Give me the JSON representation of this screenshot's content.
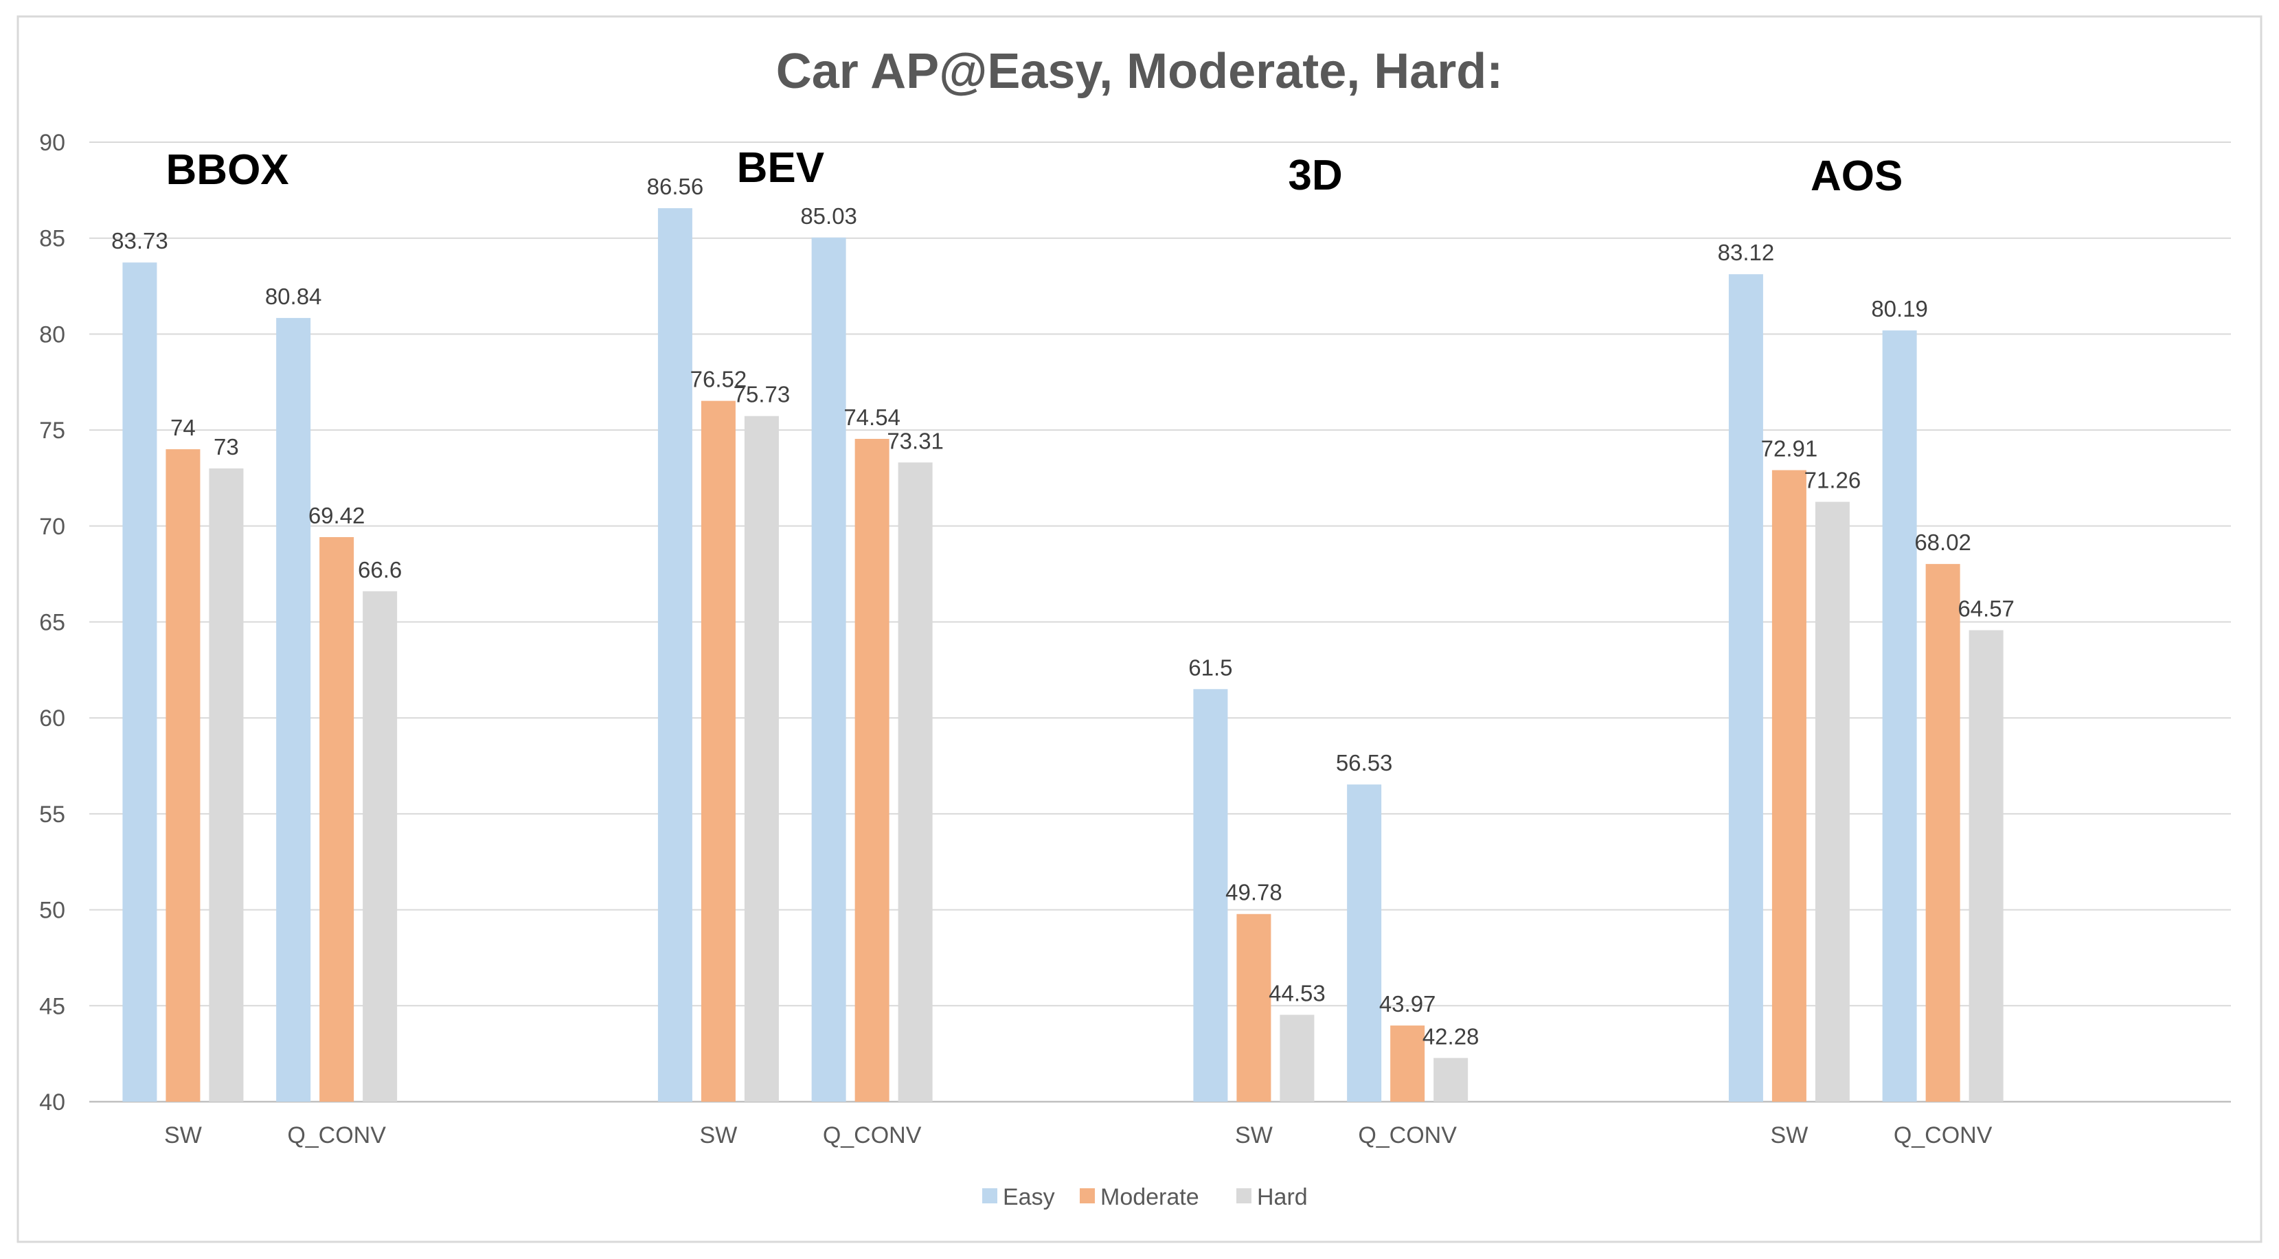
{
  "chart_data": {
    "type": "bar",
    "title": "Car AP@Easy, Moderate, Hard:",
    "xlabel": "",
    "ylabel": "",
    "ylim": [
      40,
      90
    ],
    "yticks": [
      40,
      45,
      50,
      55,
      60,
      65,
      70,
      75,
      80,
      85,
      90
    ],
    "grid": true,
    "legend_position": "bottom",
    "series_names": [
      "Easy",
      "Moderate",
      "Hard"
    ],
    "series_colors": [
      "#bdd7ee",
      "#f4b183",
      "#d9d9d9"
    ],
    "groups": [
      {
        "label": "BBOX",
        "categories": [
          {
            "name": "SW",
            "values": [
              83.73,
              74,
              73
            ],
            "labels": [
              "83.73",
              "74",
              "73"
            ]
          },
          {
            "name": "Q_CONV",
            "values": [
              80.84,
              69.42,
              66.6
            ],
            "labels": [
              "80.84",
              "69.42",
              "66.6"
            ]
          }
        ]
      },
      {
        "label": "BEV",
        "categories": [
          {
            "name": "SW",
            "values": [
              86.56,
              76.52,
              75.73
            ],
            "labels": [
              "86.56",
              "76.52",
              "75.73"
            ]
          },
          {
            "name": "Q_CONV",
            "values": [
              85.03,
              74.54,
              73.31
            ],
            "labels": [
              "85.03",
              "74.54",
              "73.31"
            ]
          }
        ]
      },
      {
        "label": "3D",
        "categories": [
          {
            "name": "SW",
            "values": [
              61.5,
              49.78,
              44.53
            ],
            "labels": [
              "61.5",
              "49.78",
              "44.53"
            ]
          },
          {
            "name": "Q_CONV",
            "values": [
              56.53,
              43.97,
              42.28
            ],
            "labels": [
              "56.53",
              "43.97",
              "42.28"
            ]
          }
        ]
      },
      {
        "label": "AOS",
        "categories": [
          {
            "name": "SW",
            "values": [
              83.12,
              72.91,
              71.26
            ],
            "labels": [
              "83.12",
              "72.91",
              "71.26"
            ]
          },
          {
            "name": "Q_CONV",
            "values": [
              80.19,
              68.02,
              64.57
            ],
            "labels": [
              "80.19",
              "68.02",
              "64.57"
            ]
          }
        ]
      }
    ]
  }
}
